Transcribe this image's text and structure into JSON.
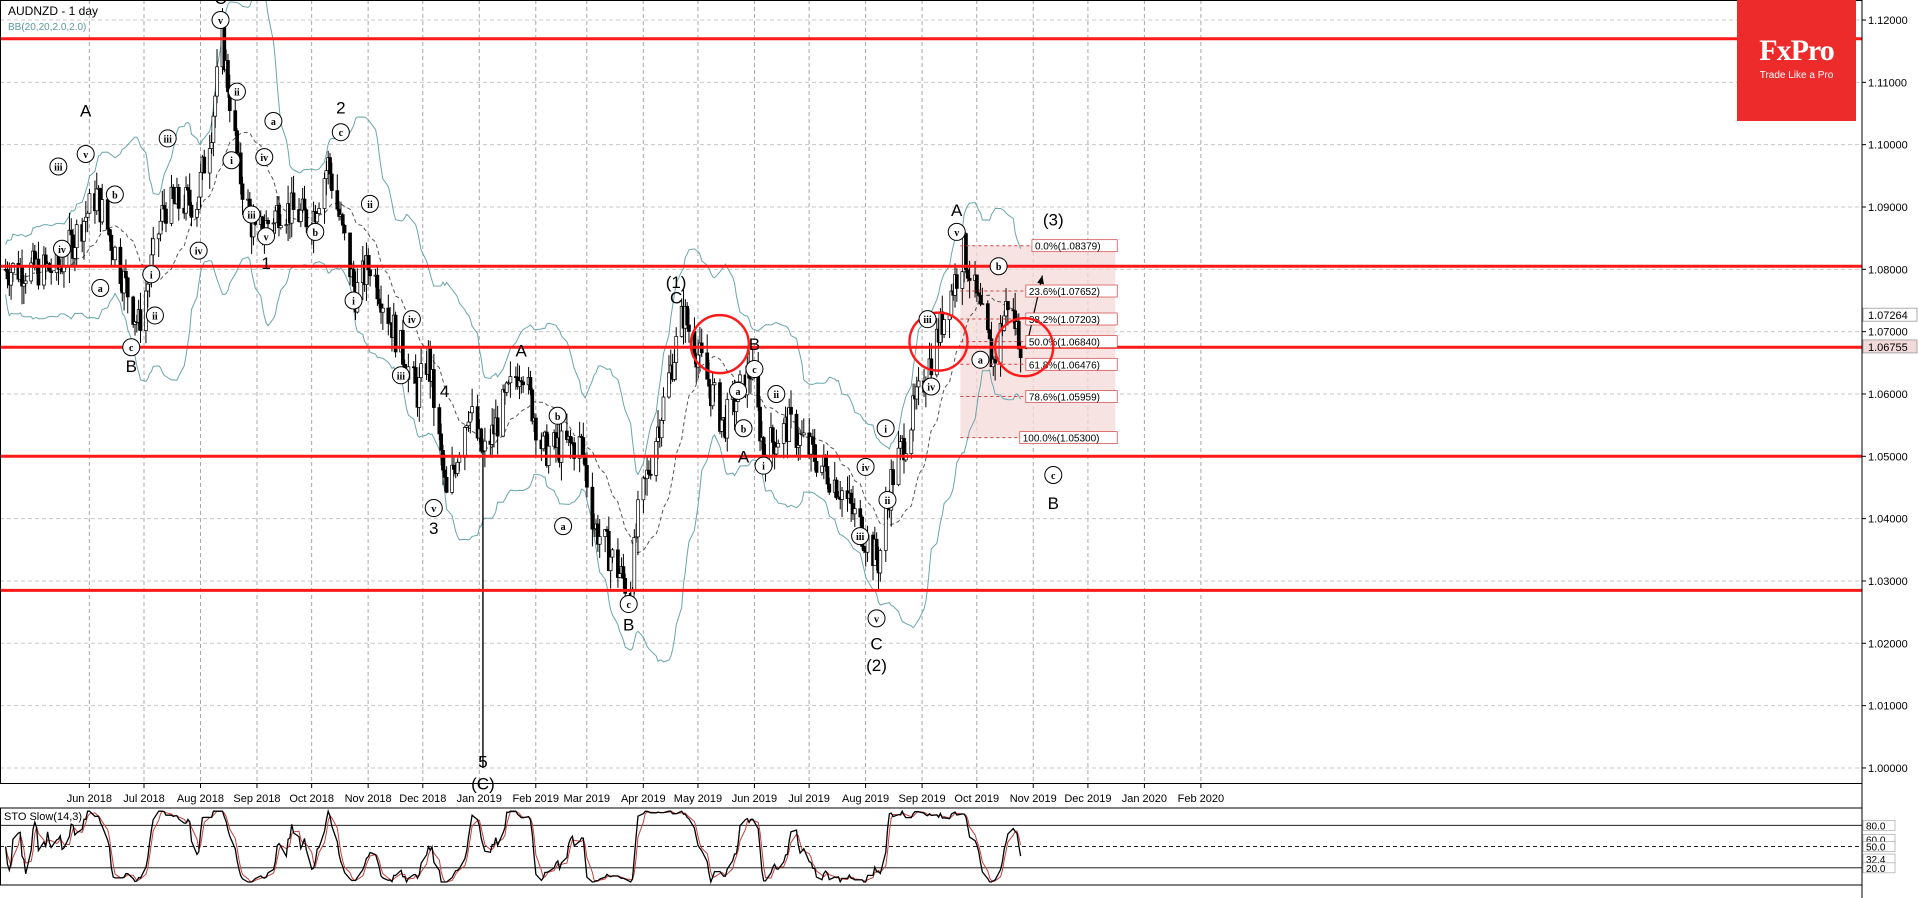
{
  "header": {
    "symbol": "AUDNZD - 1 day",
    "indicator": "BB(20,20,2.0,2.0)"
  },
  "logo": {
    "name": "FxPro",
    "tagline": "Trade Like a Pro",
    "color": "#ee2b2b"
  },
  "oscillator": {
    "label": "STO Slow(14,3)",
    "levels": [
      "80.0",
      "60.0",
      "50.0",
      "32.4",
      "20.0"
    ]
  },
  "chart_data": {
    "type": "candlestick",
    "title": "AUDNZD - 1 day",
    "ylim": [
      0.995,
      1.1225
    ],
    "y_ticks": [
      "1.12000",
      "1.11000",
      "1.10000",
      "1.09000",
      "1.08000",
      "1.07000",
      "1.06000",
      "1.05000",
      "1.04000",
      "1.03000",
      "1.02000",
      "1.01000",
      "1.00000"
    ],
    "x_ticks": [
      "Jun 2018",
      "Jul 2018",
      "Aug 2018",
      "Sep 2018",
      "Oct 2018",
      "Nov 2018",
      "Dec 2018",
      "Jan 2019",
      "Feb 2019",
      "Mar 2019",
      "Apr 2019",
      "May 2019",
      "Jun 2019",
      "Jul 2019",
      "Aug 2019",
      "Sep 2019",
      "Oct 2019",
      "Nov 2019",
      "Dec 2019",
      "Jan 2020",
      "Feb 2020"
    ],
    "price_path": [
      [
        "2018-05-15",
        1.08
      ],
      [
        "2018-06-05",
        1.092
      ],
      [
        "2018-06-28",
        1.071
      ],
      [
        "2018-07-12",
        1.09
      ],
      [
        "2018-07-30",
        1.091
      ],
      [
        "2018-08-07",
        1.103
      ],
      [
        "2018-08-13",
        1.117
      ],
      [
        "2018-08-22",
        1.096
      ],
      [
        "2018-08-31",
        1.085
      ],
      [
        "2018-09-14",
        1.09
      ],
      [
        "2018-10-01",
        1.088
      ],
      [
        "2018-10-10",
        1.097
      ],
      [
        "2018-10-25",
        1.076
      ],
      [
        "2018-11-02",
        1.081
      ],
      [
        "2018-11-28",
        1.06
      ],
      [
        "2018-12-04",
        1.066
      ],
      [
        "2018-12-14",
        1.043
      ],
      [
        "2018-12-26",
        1.058
      ],
      [
        "2019-01-03",
        1.05
      ],
      [
        "2019-01-06",
        1.052
      ],
      [
        "2019-01-24",
        1.065
      ],
      [
        "2019-02-05",
        1.051
      ],
      [
        "2019-02-26",
        1.052
      ],
      [
        "2019-03-05",
        1.039
      ],
      [
        "2019-03-25",
        1.028
      ],
      [
        "2019-03-29",
        1.04
      ],
      [
        "2019-04-23",
        1.073
      ],
      [
        "2019-05-15",
        1.055
      ],
      [
        "2019-05-30",
        1.064
      ],
      [
        "2019-06-06",
        1.051
      ],
      [
        "2019-06-20",
        1.055
      ],
      [
        "2019-07-18",
        1.045
      ],
      [
        "2019-08-08",
        1.033
      ],
      [
        "2019-08-15",
        1.046
      ],
      [
        "2019-09-03",
        1.063
      ],
      [
        "2019-09-24",
        1.083
      ],
      [
        "2019-10-10",
        1.065
      ],
      [
        "2019-10-18",
        1.075
      ],
      [
        "2019-10-28",
        1.066
      ]
    ],
    "extreme_lows": [
      {
        "date": "2019-01-03",
        "value": 1.0
      }
    ],
    "horizontal_levels": [
      1.117,
      1.0805,
      1.0675,
      1.05,
      1.0285
    ],
    "fibonacci": {
      "high": 1.08379,
      "low": 1.053,
      "levels": [
        {
          "label": "0.0%(1.08379)",
          "value": 1.08379
        },
        {
          "label": "23.6%(1.07652)",
          "value": 1.07652
        },
        {
          "label": "38.2%(1.07203)",
          "value": 1.07203
        },
        {
          "label": "50.0%(1.06840)",
          "value": 1.0684
        },
        {
          "label": "61.8%(1.06476)",
          "value": 1.06476
        },
        {
          "label": "78.6%(1.05959)",
          "value": 1.05959
        },
        {
          "label": "100.0%(1.05300)",
          "value": 1.053
        }
      ]
    },
    "price_tags": [
      "1.07264",
      "1.06755"
    ],
    "forecast_arrow": {
      "from": [
        "2019-10-28",
        1.0672
      ],
      "to": [
        "2019-11-06",
        1.079
      ]
    },
    "circles": [
      {
        "center": [
          "2019-05-13",
          1.068
        ]
      },
      {
        "center": [
          "2019-09-10",
          1.0684
        ]
      },
      {
        "center": [
          "2019-10-27",
          1.0675
        ]
      }
    ],
    "wave_labels": [
      {
        "text": "A",
        "d": "2018-05-30",
        "v": 1.1055,
        "circled": false
      },
      {
        "text": "v",
        "d": "2018-05-30",
        "v": 1.0985,
        "circled": true
      },
      {
        "text": "iii",
        "d": "2018-05-15",
        "v": 1.0965,
        "circled": true
      },
      {
        "text": "iv",
        "d": "2018-05-17",
        "v": 1.0833,
        "circled": true
      },
      {
        "text": "a",
        "d": "2018-06-07",
        "v": 1.077,
        "circled": true
      },
      {
        "text": "b",
        "d": "2018-06-15",
        "v": 1.092,
        "circled": true
      },
      {
        "text": "c",
        "d": "2018-06-24",
        "v": 1.0675,
        "circled": true
      },
      {
        "text": "B",
        "d": "2018-06-24",
        "v": 1.0645,
        "circled": false
      },
      {
        "text": "i",
        "d": "2018-07-05",
        "v": 1.0792,
        "circled": true
      },
      {
        "text": "ii",
        "d": "2018-07-07",
        "v": 1.0726,
        "circled": true
      },
      {
        "text": "iii",
        "d": "2018-07-14",
        "v": 1.101,
        "circled": true
      },
      {
        "text": "iv",
        "d": "2018-07-31",
        "v": 1.083,
        "circled": true
      },
      {
        "text": "C",
        "d": "2018-08-12",
        "v": 1.1235,
        "circled": false
      },
      {
        "text": "v",
        "d": "2018-08-12",
        "v": 1.12,
        "circled": true
      },
      {
        "text": "ii",
        "d": "2018-08-21",
        "v": 1.1085,
        "circled": true
      },
      {
        "text": "i",
        "d": "2018-08-18",
        "v": 1.0975,
        "circled": true
      },
      {
        "text": "iii",
        "d": "2018-08-29",
        "v": 1.0888,
        "circled": true
      },
      {
        "text": "a",
        "d": "2018-09-10",
        "v": 1.1038,
        "circled": true
      },
      {
        "text": "iv",
        "d": "2018-09-05",
        "v": 1.098,
        "circled": true
      },
      {
        "text": "v",
        "d": "2018-09-06",
        "v": 1.0853,
        "circled": true
      },
      {
        "text": "1",
        "d": "2018-09-06",
        "v": 1.081,
        "circled": false
      },
      {
        "text": "b",
        "d": "2018-10-03",
        "v": 1.086,
        "circled": true
      },
      {
        "text": "2",
        "d": "2018-10-17",
        "v": 1.106,
        "circled": false
      },
      {
        "text": "c",
        "d": "2018-10-17",
        "v": 1.102,
        "circled": true
      },
      {
        "text": "ii",
        "d": "2018-11-02",
        "v": 1.0905,
        "circled": true
      },
      {
        "text": "i",
        "d": "2018-10-24",
        "v": 1.075,
        "circled": true
      },
      {
        "text": "iv",
        "d": "2018-11-25",
        "v": 1.072,
        "circled": true
      },
      {
        "text": "iii",
        "d": "2018-11-19",
        "v": 1.063,
        "circled": true
      },
      {
        "text": "4",
        "d": "2018-12-13",
        "v": 1.0605,
        "circled": false
      },
      {
        "text": "v",
        "d": "2018-12-07",
        "v": 1.0417,
        "circled": true
      },
      {
        "text": "3",
        "d": "2018-12-07",
        "v": 1.0385,
        "circled": false
      },
      {
        "text": "5",
        "d": "2019-01-03",
        "v": 1.001,
        "circled": false
      },
      {
        "text": "(C)",
        "d": "2019-01-03",
        "v": 0.9975,
        "circled": false
      },
      {
        "text": "A",
        "d": "2019-01-24",
        "v": 1.067,
        "circled": false
      },
      {
        "text": "b",
        "d": "2019-02-13",
        "v": 1.0565,
        "circled": true
      },
      {
        "text": "a",
        "d": "2019-02-16",
        "v": 1.0388,
        "circled": true
      },
      {
        "text": "c",
        "d": "2019-03-24",
        "v": 1.0263,
        "circled": true
      },
      {
        "text": "B",
        "d": "2019-03-24",
        "v": 1.023,
        "circled": false
      },
      {
        "text": "(1)",
        "d": "2019-04-19",
        "v": 1.078,
        "circled": false
      },
      {
        "text": "C",
        "d": "2019-04-19",
        "v": 1.0755,
        "circled": false
      },
      {
        "text": "A",
        "d": "2019-05-26",
        "v": 1.05,
        "circled": false
      },
      {
        "text": "a",
        "d": "2019-05-23",
        "v": 1.0605,
        "circled": true
      },
      {
        "text": "b",
        "d": "2019-05-26",
        "v": 1.0545,
        "circled": true
      },
      {
        "text": "B",
        "d": "2019-06-01",
        "v": 1.068,
        "circled": false
      },
      {
        "text": "c",
        "d": "2019-06-01",
        "v": 1.064,
        "circled": true
      },
      {
        "text": "ii",
        "d": "2019-06-13",
        "v": 1.06,
        "circled": true
      },
      {
        "text": "i",
        "d": "2019-06-06",
        "v": 1.0485,
        "circled": true
      },
      {
        "text": "iv",
        "d": "2019-08-01",
        "v": 1.0483,
        "circled": true
      },
      {
        "text": "iii",
        "d": "2019-07-29",
        "v": 1.0372,
        "circled": true
      },
      {
        "text": "v",
        "d": "2019-08-07",
        "v": 1.024,
        "circled": true
      },
      {
        "text": "C",
        "d": "2019-08-07",
        "v": 1.02,
        "circled": false
      },
      {
        "text": "(2)",
        "d": "2019-08-07",
        "v": 1.0165,
        "circled": false
      },
      {
        "text": "i",
        "d": "2019-08-12",
        "v": 1.0545,
        "circled": true
      },
      {
        "text": "ii",
        "d": "2019-08-13",
        "v": 1.043,
        "circled": true
      },
      {
        "text": "iii",
        "d": "2019-09-04",
        "v": 1.072,
        "circled": true
      },
      {
        "text": "iv",
        "d": "2019-09-06",
        "v": 1.0612,
        "circled": true
      },
      {
        "text": "A",
        "d": "2019-09-20",
        "v": 1.0895,
        "circled": false
      },
      {
        "text": "v",
        "d": "2019-09-20",
        "v": 1.086,
        "circled": true
      },
      {
        "text": "b",
        "d": "2019-10-13",
        "v": 1.0805,
        "circled": true
      },
      {
        "text": "a",
        "d": "2019-10-03",
        "v": 1.0655,
        "circled": true
      },
      {
        "text": "(3)",
        "d": "2019-11-12",
        "v": 1.088,
        "circled": false
      },
      {
        "text": "c",
        "d": "2019-11-12",
        "v": 1.047,
        "circled": true
      },
      {
        "text": "B",
        "d": "2019-11-12",
        "v": 1.0425,
        "circled": false
      }
    ]
  }
}
